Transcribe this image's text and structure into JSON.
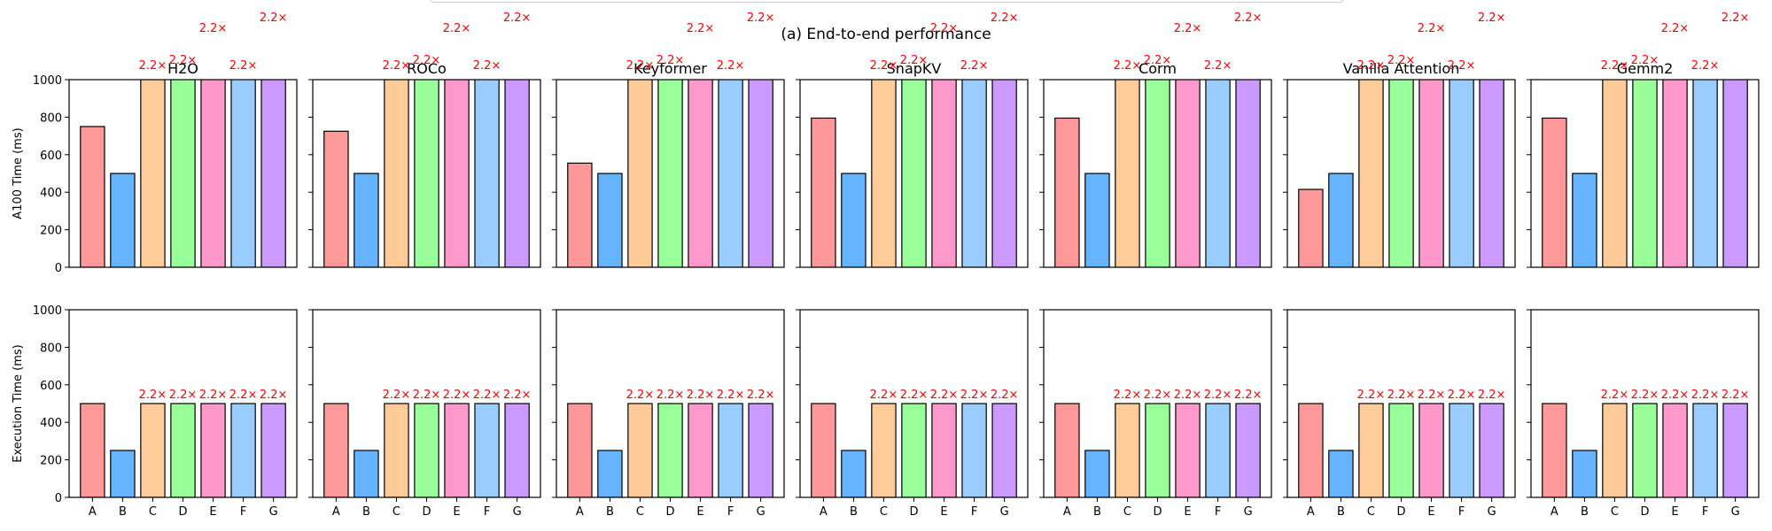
{
  "figure": {
    "title": "(a) End-to-end performance",
    "row_labels": [
      "A100 Time (ms)",
      "Execution Time (ms)"
    ]
  },
  "colors": {
    "A": "#ff9999",
    "B": "#66b3ff",
    "C": "#ffcc99",
    "D": "#99ff99",
    "E": "#ff99cc",
    "F": "#99ccff",
    "G": "#cc99ff",
    "annotation": "#ff0000",
    "edge": "#000000"
  },
  "chart_data": [
    {
      "type": "bar",
      "row": 0,
      "col": 0,
      "title": "H2O",
      "categories": [
        "A",
        "B",
        "C",
        "D",
        "E",
        "F",
        "G"
      ],
      "values": [
        750,
        500,
        1100,
        1100,
        1100,
        1100,
        1100
      ],
      "annotations": [
        "",
        "",
        "2.2×",
        "2.2×",
        "2.2×",
        "2.2×",
        "2.2×"
      ],
      "ylim": [
        0,
        1000
      ],
      "yticks": [
        0,
        200,
        400,
        600,
        800,
        1000
      ],
      "ylabel": "A100 Time (ms)"
    },
    {
      "type": "bar",
      "row": 0,
      "col": 1,
      "title": "ROCo",
      "categories": [
        "A",
        "B",
        "C",
        "D",
        "E",
        "F",
        "G"
      ],
      "values": [
        725,
        500,
        1100,
        1100,
        1100,
        1100,
        1100
      ],
      "annotations": [
        "",
        "",
        "2.2×",
        "2.2×",
        "2.2×",
        "2.2×",
        "2.2×"
      ],
      "ylim": [
        0,
        1000
      ],
      "yticks": [
        0,
        200,
        400,
        600,
        800,
        1000
      ]
    },
    {
      "type": "bar",
      "row": 0,
      "col": 2,
      "title": "Keyformer",
      "categories": [
        "A",
        "B",
        "C",
        "D",
        "E",
        "F",
        "G"
      ],
      "values": [
        555,
        500,
        1100,
        1100,
        1100,
        1100,
        1100
      ],
      "annotations": [
        "",
        "",
        "2.2×",
        "2.2×",
        "2.2×",
        "2.2×",
        "2.2×"
      ],
      "ylim": [
        0,
        1000
      ],
      "yticks": [
        0,
        200,
        400,
        600,
        800,
        1000
      ]
    },
    {
      "type": "bar",
      "row": 0,
      "col": 3,
      "title": "SnapKV",
      "categories": [
        "A",
        "B",
        "C",
        "D",
        "E",
        "F",
        "G"
      ],
      "values": [
        795,
        500,
        1100,
        1100,
        1100,
        1100,
        1100
      ],
      "annotations": [
        "",
        "",
        "2.2×",
        "2.2×",
        "2.2×",
        "2.2×",
        "2.2×"
      ],
      "ylim": [
        0,
        1000
      ],
      "yticks": [
        0,
        200,
        400,
        600,
        800,
        1000
      ]
    },
    {
      "type": "bar",
      "row": 0,
      "col": 4,
      "title": "Corm",
      "categories": [
        "A",
        "B",
        "C",
        "D",
        "E",
        "F",
        "G"
      ],
      "values": [
        795,
        500,
        1100,
        1100,
        1100,
        1100,
        1100
      ],
      "annotations": [
        "",
        "",
        "2.2×",
        "2.2×",
        "2.2×",
        "2.2×",
        "2.2×"
      ],
      "ylim": [
        0,
        1000
      ],
      "yticks": [
        0,
        200,
        400,
        600,
        800,
        1000
      ]
    },
    {
      "type": "bar",
      "row": 0,
      "col": 5,
      "title": "Vanilla Attention",
      "categories": [
        "A",
        "B",
        "C",
        "D",
        "E",
        "F",
        "G"
      ],
      "values": [
        415,
        500,
        1100,
        1100,
        1100,
        1100,
        1100
      ],
      "annotations": [
        "",
        "",
        "2.2×",
        "2.2×",
        "2.2×",
        "2.2×",
        "2.2×"
      ],
      "ylim": [
        0,
        1000
      ],
      "yticks": [
        0,
        200,
        400,
        600,
        800,
        1000
      ]
    },
    {
      "type": "bar",
      "row": 0,
      "col": 6,
      "title": "Gemm2",
      "categories": [
        "A",
        "B",
        "C",
        "D",
        "E",
        "F",
        "G"
      ],
      "values": [
        795,
        500,
        1100,
        1100,
        1100,
        1100,
        1100
      ],
      "annotations": [
        "",
        "",
        "2.2×",
        "2.2×",
        "2.2×",
        "2.2×",
        "2.2×"
      ],
      "ylim": [
        0,
        1000
      ],
      "yticks": [
        0,
        200,
        400,
        600,
        800,
        1000
      ]
    },
    {
      "type": "bar",
      "row": 1,
      "col": 0,
      "title": "",
      "categories": [
        "A",
        "B",
        "C",
        "D",
        "E",
        "F",
        "G"
      ],
      "values": [
        500,
        250,
        500,
        500,
        500,
        500,
        500
      ],
      "annotations": [
        "",
        "",
        "2.2×",
        "2.2×",
        "2.2×",
        "2.2×",
        "2.2×"
      ],
      "ylim": [
        0,
        1000
      ],
      "yticks": [
        0,
        200,
        400,
        600,
        800,
        1000
      ],
      "ylabel": "Execution Time (ms)"
    },
    {
      "type": "bar",
      "row": 1,
      "col": 1,
      "title": "",
      "categories": [
        "A",
        "B",
        "C",
        "D",
        "E",
        "F",
        "G"
      ],
      "values": [
        500,
        250,
        500,
        500,
        500,
        500,
        500
      ],
      "annotations": [
        "",
        "",
        "2.2×",
        "2.2×",
        "2.2×",
        "2.2×",
        "2.2×"
      ],
      "ylim": [
        0,
        1000
      ],
      "yticks": [
        0,
        200,
        400,
        600,
        800,
        1000
      ]
    },
    {
      "type": "bar",
      "row": 1,
      "col": 2,
      "title": "",
      "categories": [
        "A",
        "B",
        "C",
        "D",
        "E",
        "F",
        "G"
      ],
      "values": [
        500,
        250,
        500,
        500,
        500,
        500,
        500
      ],
      "annotations": [
        "",
        "",
        "2.2×",
        "2.2×",
        "2.2×",
        "2.2×",
        "2.2×"
      ],
      "ylim": [
        0,
        1000
      ],
      "yticks": [
        0,
        200,
        400,
        600,
        800,
        1000
      ]
    },
    {
      "type": "bar",
      "row": 1,
      "col": 3,
      "title": "",
      "categories": [
        "A",
        "B",
        "C",
        "D",
        "E",
        "F",
        "G"
      ],
      "values": [
        500,
        250,
        500,
        500,
        500,
        500,
        500
      ],
      "annotations": [
        "",
        "",
        "2.2×",
        "2.2×",
        "2.2×",
        "2.2×",
        "2.2×"
      ],
      "ylim": [
        0,
        1000
      ],
      "yticks": [
        0,
        200,
        400,
        600,
        800,
        1000
      ]
    },
    {
      "type": "bar",
      "row": 1,
      "col": 4,
      "title": "",
      "categories": [
        "A",
        "B",
        "C",
        "D",
        "E",
        "F",
        "G"
      ],
      "values": [
        500,
        250,
        500,
        500,
        500,
        500,
        500
      ],
      "annotations": [
        "",
        "",
        "2.2×",
        "2.2×",
        "2.2×",
        "2.2×",
        "2.2×"
      ],
      "ylim": [
        0,
        1000
      ],
      "yticks": [
        0,
        200,
        400,
        600,
        800,
        1000
      ]
    },
    {
      "type": "bar",
      "row": 1,
      "col": 5,
      "title": "",
      "categories": [
        "A",
        "B",
        "C",
        "D",
        "E",
        "F",
        "G"
      ],
      "values": [
        500,
        250,
        500,
        500,
        500,
        500,
        500
      ],
      "annotations": [
        "",
        "",
        "2.2×",
        "2.2×",
        "2.2×",
        "2.2×",
        "2.2×"
      ],
      "ylim": [
        0,
        1000
      ],
      "yticks": [
        0,
        200,
        400,
        600,
        800,
        1000
      ]
    },
    {
      "type": "bar",
      "row": 1,
      "col": 6,
      "title": "",
      "categories": [
        "A",
        "B",
        "C",
        "D",
        "E",
        "F",
        "G"
      ],
      "values": [
        500,
        250,
        500,
        500,
        500,
        500,
        500
      ],
      "annotations": [
        "",
        "",
        "2.2×",
        "2.2×",
        "2.2×",
        "2.2×",
        "2.2×"
      ],
      "ylim": [
        0,
        1000
      ],
      "yticks": [
        0,
        200,
        400,
        600,
        800,
        1000
      ]
    }
  ]
}
